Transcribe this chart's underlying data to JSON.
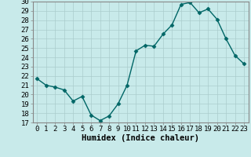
{
  "x": [
    0,
    1,
    2,
    3,
    4,
    5,
    6,
    7,
    8,
    9,
    10,
    11,
    12,
    13,
    14,
    15,
    16,
    17,
    18,
    19,
    20,
    21,
    22,
    23
  ],
  "y": [
    21.7,
    21.0,
    20.8,
    20.5,
    19.3,
    19.8,
    17.8,
    17.2,
    17.7,
    19.0,
    21.0,
    24.7,
    25.3,
    25.2,
    26.5,
    27.5,
    29.7,
    29.9,
    28.8,
    29.2,
    28.1,
    26.0,
    24.2,
    23.3
  ],
  "line_color": "#006666",
  "marker": "D",
  "marker_size": 2.5,
  "bg_color": "#c8eaea",
  "grid_color": "#aacccc",
  "xlabel": "Humidex (Indice chaleur)",
  "ylim": [
    17,
    30
  ],
  "yticks": [
    17,
    18,
    19,
    20,
    21,
    22,
    23,
    24,
    25,
    26,
    27,
    28,
    29,
    30
  ],
  "xticks": [
    0,
    1,
    2,
    3,
    4,
    5,
    6,
    7,
    8,
    9,
    10,
    11,
    12,
    13,
    14,
    15,
    16,
    17,
    18,
    19,
    20,
    21,
    22,
    23
  ],
  "tick_fontsize": 6.5,
  "xlabel_fontsize": 7.5,
  "spine_color": "#888888",
  "linewidth": 1.0
}
